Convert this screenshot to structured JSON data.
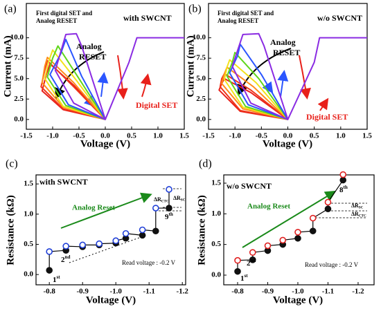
{
  "chart_data": [
    {
      "type": "line",
      "panel_label": "(a)",
      "note": [
        "First digital SET and",
        "Analog RESET"
      ],
      "condition": "with SWCNT",
      "reset_label": [
        "Analog",
        "RESET"
      ],
      "set_label": "Digital SET",
      "x_label": "Voltage (V)",
      "y_label": "Current (mA)",
      "xlim": [
        -1.5,
        1.5
      ],
      "xticks": [
        -1.5,
        {
          "value": -1,
          "label": "-1.0"
        },
        -0.5,
        {
          "value": 0,
          "label": "0.0"
        },
        0.5,
        {
          "value": 1,
          "label": "1.0"
        },
        1.5
      ],
      "ylim": [
        -1.2,
        14.2
      ],
      "yticks": [
        {
          "value": 0,
          "label": "0.0"
        },
        2.5,
        {
          "value": 5,
          "label": "5.0"
        },
        7.5,
        {
          "value": 10,
          "label": "10.0"
        }
      ],
      "series": [
        {
          "color": "#e8201a",
          "x": [
            0,
            -0.6,
            -1.05,
            -1.12,
            -1.2,
            -0.8,
            0
          ],
          "values": [
            0,
            4.2,
            6.8,
            5.5,
            3.5,
            1.2,
            0
          ]
        },
        {
          "color": "#f0361a",
          "x": [
            0,
            -0.6,
            -1.1,
            -1.15,
            -1.22,
            -0.8,
            0
          ],
          "values": [
            0,
            4.0,
            7.2,
            6,
            4,
            1.3,
            0
          ]
        },
        {
          "color": "#ff8c1a",
          "x": [
            0,
            -0.6,
            -1.1,
            -1.15,
            -1.2,
            -0.8,
            0
          ],
          "values": [
            0,
            4.5,
            7.6,
            6.5,
            4.5,
            1.5,
            0
          ]
        },
        {
          "color": "#f2e21a",
          "x": [
            0,
            -0.55,
            -1.0,
            -1.08,
            -1.15,
            -0.8,
            0
          ],
          "values": [
            0,
            4.8,
            8.5,
            7,
            5,
            1.6,
            0
          ]
        },
        {
          "color": "#5fd61a",
          "x": [
            0,
            -0.5,
            -0.9,
            -1.0,
            -1.1,
            -0.75,
            0
          ],
          "values": [
            0,
            5,
            9,
            7.5,
            5.2,
            1.7,
            0
          ]
        },
        {
          "color": "#2a55ff",
          "x": [
            0,
            -0.45,
            -0.75,
            -0.85,
            -1.05,
            -0.7,
            0
          ],
          "values": [
            0,
            5.3,
            9.8,
            8,
            5.5,
            1.8,
            0
          ]
        },
        {
          "color": "#8a2be2",
          "x": [
            1.5,
            0.6,
            0.45,
            0,
            -0.45,
            -0.55,
            -0.75,
            -0.95,
            -0.6,
            0
          ],
          "values": [
            10,
            10,
            7,
            0,
            9,
            10.5,
            10.4,
            6,
            2,
            0
          ]
        }
      ]
    },
    {
      "type": "line",
      "panel_label": "(b)",
      "note": [
        "First digital SET and",
        "Analog RESET"
      ],
      "condition": "w/o SWCNT",
      "reset_label": [
        "Analog",
        "RESET"
      ],
      "set_label": "Digital SET",
      "x_label": "Voltage (V)",
      "y_label": "Current (mA)",
      "xlim": [
        -1.5,
        1.5
      ],
      "xticks": [
        -1.5,
        {
          "value": -1,
          "label": "-1.0"
        },
        -0.5,
        {
          "value": 0,
          "label": "0.0"
        },
        0.5,
        {
          "value": 1,
          "label": "1.0"
        },
        1.5
      ],
      "ylim": [
        -1.2,
        14.2
      ],
      "yticks": [
        {
          "value": 0,
          "label": "0.0"
        },
        2.5,
        {
          "value": 5,
          "label": "5.0"
        },
        7.5,
        {
          "value": 10,
          "label": "10.0"
        }
      ],
      "series": [
        {
          "color": "#e8201a",
          "x": [
            0,
            -0.7,
            -1.2,
            -1.25,
            -1.3,
            -0.9,
            0
          ],
          "values": [
            0,
            3.3,
            5.0,
            4.4,
            3.6,
            1.0,
            0
          ]
        },
        {
          "color": "#f0361a",
          "x": [
            0,
            -0.7,
            -1.2,
            -1.25,
            -1.28,
            -0.9,
            0
          ],
          "values": [
            0,
            3.6,
            5.6,
            5.0,
            4.0,
            1.1,
            0
          ]
        },
        {
          "color": "#ff8c1a",
          "x": [
            0,
            -0.65,
            -1.15,
            -1.2,
            -1.25,
            -0.85,
            0
          ],
          "values": [
            0,
            4.0,
            6.4,
            5.6,
            4.4,
            1.3,
            0
          ]
        },
        {
          "color": "#f2e21a",
          "x": [
            0,
            -0.6,
            -1.1,
            -1.15,
            -1.2,
            -0.85,
            0
          ],
          "values": [
            0,
            4.5,
            7.3,
            6.4,
            4.9,
            1.5,
            0
          ]
        },
        {
          "color": "#5fd61a",
          "x": [
            0,
            -0.55,
            -1.0,
            -1.05,
            -1.15,
            -0.8,
            0
          ],
          "values": [
            0,
            5.0,
            8.2,
            7.0,
            5.3,
            1.6,
            0
          ]
        },
        {
          "color": "#2a55ff",
          "x": [
            0,
            -0.5,
            -0.9,
            -0.95,
            -1.1,
            -0.75,
            0
          ],
          "values": [
            0,
            5.5,
            9.2,
            7.8,
            5.7,
            1.8,
            0
          ]
        },
        {
          "color": "#8a2be2",
          "x": [
            1.5,
            0.6,
            0.5,
            0,
            -0.45,
            -0.55,
            -0.85,
            -1.05,
            -0.7,
            0
          ],
          "values": [
            10,
            10,
            7,
            0,
            9,
            10.5,
            10.4,
            6.5,
            2,
            0
          ]
        }
      ]
    },
    {
      "type": "scatter",
      "panel_label": "(c)",
      "condition": "with SWCNT",
      "trend_label": "Analog Reset",
      "read_voltage": "Read voltage : -0.2 V",
      "point_labels": [
        {
          "text": "1",
          "sup": "st"
        },
        {
          "text": "2",
          "sup": "nd"
        },
        {
          "text": "9",
          "sup": "th"
        }
      ],
      "delta_labels": [
        {
          "text": "ΔR",
          "sub": "CTC"
        },
        {
          "text": "ΔR",
          "sub": "SC"
        }
      ],
      "x_label": "Voltage (V)",
      "y_label": "Resistance (kΩ)",
      "connector": "staircase",
      "xlim": [
        -0.76,
        -1.21
      ],
      "xticks": [
        -0.8,
        -0.9,
        {
          "value": -1,
          "label": "-1.0"
        },
        -1.1,
        -1.2
      ],
      "ylim": [
        -0.17,
        1.65
      ],
      "yticks": [
        {
          "value": 0,
          "label": "0.0"
        },
        0.5,
        {
          "value": 1,
          "label": "1.0"
        },
        1.5
      ],
      "series": [
        {
          "color": "#111111",
          "marker": "filled",
          "x": [
            -0.8,
            -0.85,
            -0.9,
            -0.95,
            -1.0,
            -1.03,
            -1.08,
            -1.12,
            -1.16
          ],
          "values": [
            0.07,
            0.4,
            0.46,
            0.49,
            0.52,
            0.6,
            0.65,
            0.72,
            1.1
          ]
        },
        {
          "color": "#1f3fd8",
          "marker": "open",
          "x": [
            -0.8,
            -0.85,
            -0.9,
            -0.95,
            -1.0,
            -1.03,
            -1.08,
            -1.12,
            -1.16
          ],
          "values": [
            0.38,
            0.47,
            0.49,
            0.51,
            0.56,
            0.68,
            0.74,
            1.1,
            1.41
          ]
        }
      ]
    },
    {
      "type": "scatter",
      "panel_label": "(d)",
      "condition": "w/o SWCNT",
      "trend_label": "Analog Reset",
      "read_voltage": "Read voltage : -0.2 V",
      "point_labels": [
        {
          "text": "1",
          "sup": "st"
        },
        {
          "text": "2",
          "sup": "nd"
        },
        {
          "text": "8",
          "sup": "th"
        }
      ],
      "delta_labels": [
        {
          "text": "ΔR",
          "sub": "SC"
        },
        {
          "text": "ΔR",
          "sub": "CTC"
        }
      ],
      "x_label": "Voltage (V)",
      "y_label": "Resistance (kΩ)",
      "connector": "staircase",
      "xlim": [
        -0.754,
        -1.253
      ],
      "xticks": [
        -0.8,
        -0.9,
        {
          "value": -1,
          "label": "-1.0"
        },
        -1.1,
        -1.2
      ],
      "ylim": [
        -0.158,
        1.635
      ],
      "yticks": [
        {
          "value": 0,
          "label": "0.0"
        },
        0.5,
        {
          "value": 1,
          "label": "1.0"
        },
        1.5
      ],
      "series": [
        {
          "color": "#111111",
          "marker": "filled",
          "x": [
            -0.8,
            -0.85,
            -0.9,
            -0.95,
            -1.0,
            -1.05,
            -1.1,
            -1.15
          ],
          "values": [
            0.06,
            0.25,
            0.4,
            0.5,
            0.6,
            0.72,
            1.08,
            1.55
          ]
        },
        {
          "color": "#e02020",
          "marker": "open",
          "x": [
            -0.8,
            -0.85,
            -0.9,
            -0.95,
            -1.0,
            -1.05,
            -1.1,
            -1.15
          ],
          "values": [
            0.24,
            0.37,
            0.48,
            0.57,
            0.7,
            0.93,
            1.19,
            1.64
          ]
        }
      ]
    }
  ]
}
